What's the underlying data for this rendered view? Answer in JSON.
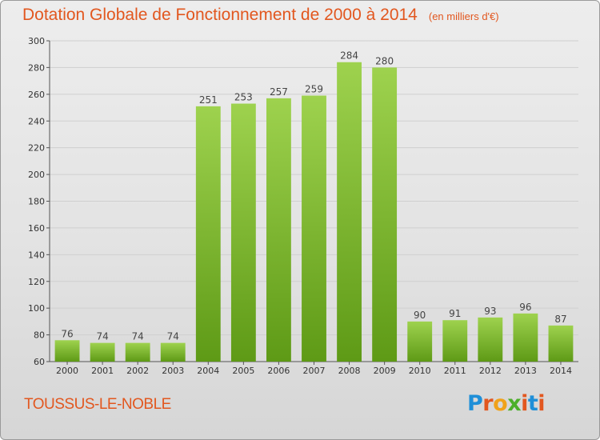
{
  "header": {
    "title": "Dotation Globale de Fonctionnement de 2000 à 2014",
    "subtitle": "(en milliers d'€)"
  },
  "footer": {
    "place": "TOUSSUS-LE-NOBLE",
    "logo": "Proxiti"
  },
  "colors": {
    "accent": "#e2571f",
    "bar_top": "#9ed24e",
    "bar_bottom": "#5e9a16",
    "grid": "#cfcfcf"
  },
  "chart_data": {
    "type": "bar",
    "categories": [
      "2000",
      "2001",
      "2002",
      "2003",
      "2004",
      "2005",
      "2006",
      "2007",
      "2008",
      "2009",
      "2010",
      "2011",
      "2012",
      "2013",
      "2014"
    ],
    "values": [
      76,
      74,
      74,
      74,
      251,
      253,
      257,
      259,
      284,
      280,
      90,
      91,
      93,
      96,
      87
    ],
    "title": "Dotation Globale de Fonctionnement de 2000 à 2014",
    "subtitle": "(en milliers d'€)",
    "ylim": [
      60,
      300
    ],
    "yticks": [
      60,
      80,
      100,
      120,
      140,
      160,
      180,
      200,
      220,
      240,
      260,
      280,
      300
    ],
    "grid": true,
    "data_labels": true
  }
}
